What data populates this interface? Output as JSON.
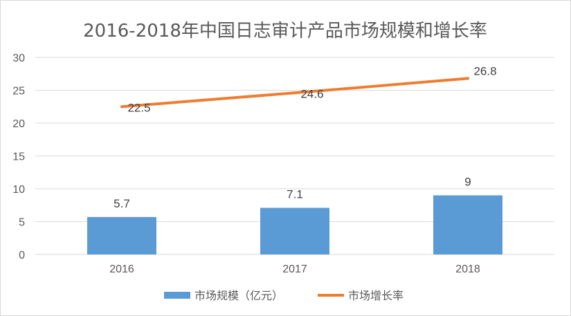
{
  "chart_data": {
    "type": "bar",
    "title": "2016-2018年中国日志审计产品市场规模和增长率",
    "categories": [
      "2016",
      "2017",
      "2018"
    ],
    "series": [
      {
        "name": "市场规模（亿元）",
        "type": "bar",
        "values": [
          5.7,
          7.1,
          9
        ],
        "color": "#5b9bd5"
      },
      {
        "name": "市场增长率",
        "type": "line",
        "values": [
          22.5,
          24.6,
          26.8
        ],
        "color": "#ed7d31"
      }
    ],
    "y_ticks": [
      "0",
      "5",
      "10",
      "15",
      "20",
      "25",
      "30"
    ],
    "ylim": [
      0,
      30
    ],
    "grid": true,
    "legend_position": "bottom"
  }
}
